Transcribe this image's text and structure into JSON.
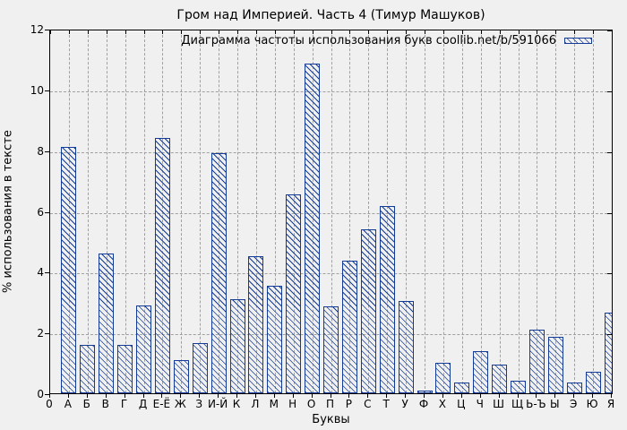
{
  "title": "Гром над Империей. Часть 4 (Тимур Машуков)",
  "legend_label": "Диаграмма частоты использования букв coollib.net/b/591066",
  "axes": {
    "xlabel": "Буквы",
    "ylabel": "% использования в тексте"
  },
  "colors": {
    "bar": "#143c96",
    "grid": "#a0a0a0",
    "background": "#f0f0f0",
    "axis": "#000000"
  },
  "chart_data": {
    "type": "bar",
    "title": "Гром над Империей. Часть 4 (Тимур Машуков)",
    "legend": [
      "Диаграмма частоты использования букв coollib.net/b/591066"
    ],
    "legend_position": "top-right-inside",
    "xlabel": "Буквы",
    "ylabel": "% использования в тексте",
    "ylim": [
      0,
      12
    ],
    "yticks": [
      0,
      2,
      4,
      6,
      8,
      10,
      12
    ],
    "grid": "both-dashed",
    "fill_style": "diagonal-hatch",
    "x_tick_labels": [
      "0",
      "А",
      "Б",
      "В",
      "Г",
      "Д",
      "Е-Ё",
      "Ж",
      "З",
      "И-Й",
      "К",
      "Л",
      "М",
      "Н",
      "О",
      "П",
      "Р",
      "С",
      "Т",
      "У",
      "Ф",
      "Х",
      "Ц",
      "Ч",
      "Ш",
      "Щ",
      "Ь-Ъ",
      "Ы",
      "Э",
      "Ю",
      "Я"
    ],
    "categories": [
      "А",
      "Б",
      "В",
      "Г",
      "Д",
      "Е-Ё",
      "Ж",
      "З",
      "И-Й",
      "К",
      "Л",
      "М",
      "Н",
      "О",
      "П",
      "Р",
      "С",
      "Т",
      "У",
      "Ф",
      "Х",
      "Ц",
      "Ч",
      "Ш",
      "Щ",
      "Ь-Ъ",
      "Ы",
      "Э",
      "Ю",
      "Я"
    ],
    "values": [
      8.1,
      1.6,
      4.6,
      1.6,
      2.9,
      8.4,
      1.1,
      1.65,
      7.9,
      3.1,
      4.5,
      3.55,
      6.55,
      10.85,
      2.85,
      4.35,
      5.4,
      6.15,
      3.05,
      0.1,
      1.0,
      0.35,
      1.4,
      0.95,
      0.4,
      2.1,
      1.85,
      0.35,
      0.7,
      2.65
    ]
  }
}
